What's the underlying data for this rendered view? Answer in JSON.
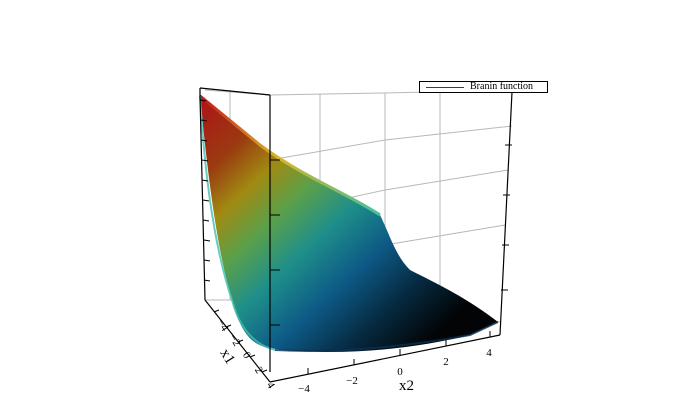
{
  "chart_data": {
    "type": "surface",
    "title": "",
    "xlabel": "x2",
    "ylabel": "x1",
    "zlabel": "",
    "x_ticks": [
      "−4",
      "−2",
      "0",
      "2",
      "4"
    ],
    "y_ticks": [
      "4",
      "2",
      "0",
      "−2",
      "−4"
    ],
    "xlim": [
      -5,
      5
    ],
    "ylim": [
      -5,
      5
    ],
    "grid": true,
    "colormap": "jet",
    "legend_position": "top-right",
    "series": [
      {
        "name": "Branin function",
        "color": "#8b1a1a"
      }
    ]
  }
}
